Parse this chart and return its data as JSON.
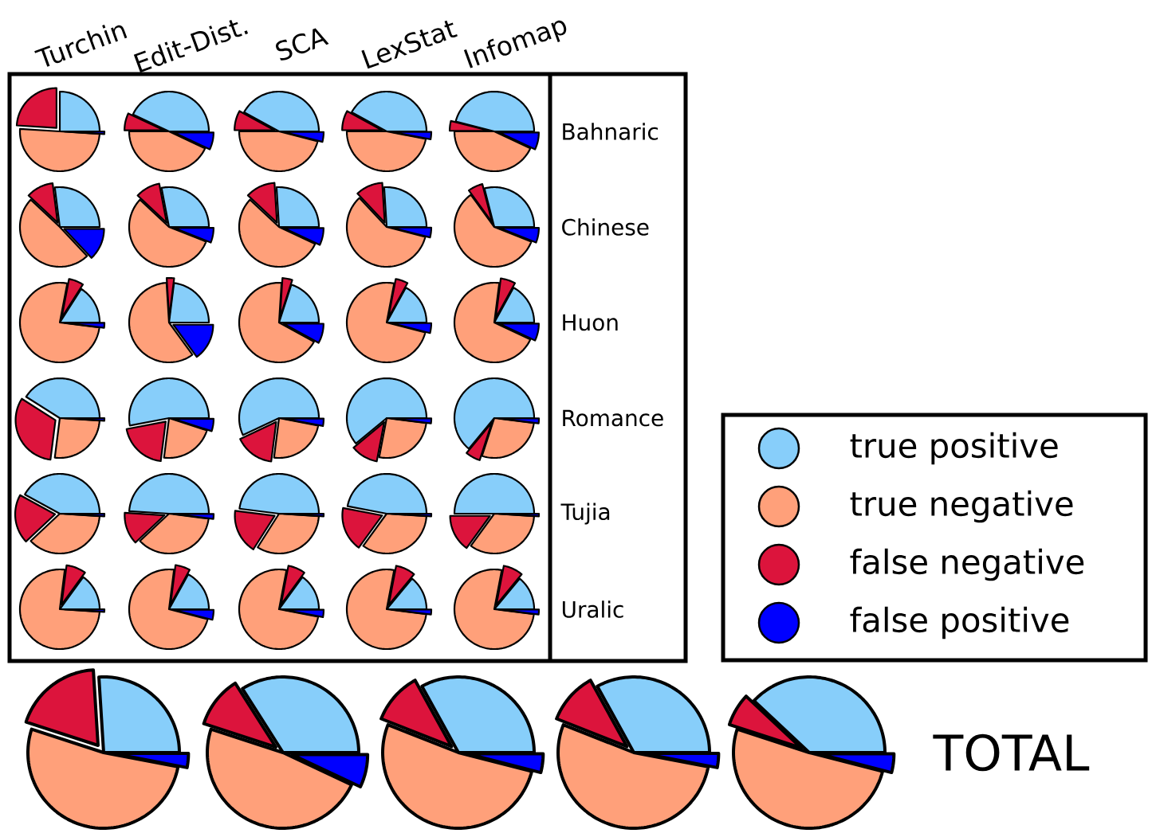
{
  "chart_data": [
    {
      "type": "pie",
      "title": "Turchin",
      "categories": [
        "true positive",
        "true negative",
        "false negative",
        "false positive"
      ],
      "legend": "right",
      "values": [
        25,
        50,
        24,
        1
      ],
      "colors": [
        "#87cefa",
        "#ffa07a",
        "#dc143c",
        "#0000ff"
      ]
    },
    {
      "type": "pie",
      "title": "Edit-Dist.",
      "categories": [
        null,
        null,
        null,
        null
      ],
      "values": [
        43,
        43,
        7,
        7
      ],
      "colors": [
        "#87cefa",
        "#ffa07a",
        "#dc143c",
        "#0000ff"
      ]
    },
    {
      "type": "pie",
      "title": "SCA",
      "categories": [
        null,
        null,
        null,
        null
      ],
      "values": [
        42,
        46,
        8,
        4
      ],
      "colors": [
        "#87cefa",
        "#ffa07a",
        "#dc143c",
        "#0000ff"
      ]
    },
    {
      "type": "pie",
      "title": "LexStat",
      "categories": [
        null,
        null,
        null,
        null
      ],
      "values": [
        42,
        47,
        8,
        3
      ],
      "colors": [
        "#87cefa",
        "#ffa07a",
        "#dc143c",
        "#0000ff"
      ]
    },
    {
      "type": "pie",
      "title": "Infomap",
      "categories": [
        null,
        null,
        null,
        null
      ],
      "values": [
        46,
        43,
        4,
        7
      ],
      "colors": [
        "#87cefa",
        "#ffa07a",
        "#dc143c",
        "#0000ff"
      ],
      "annotations": [
        "Bahnaric"
      ]
    },
    {
      "type": "pie",
      "categories": [
        null,
        null,
        null,
        null
      ],
      "values": [
        27,
        49,
        11,
        13
      ],
      "colors": [
        "#87cefa",
        "#ffa07a",
        "#dc143c",
        "#0000ff"
      ]
    },
    {
      "type": "pie",
      "categories": [
        null,
        null,
        null,
        null
      ],
      "values": [
        28,
        56,
        10,
        6
      ],
      "colors": [
        "#87cefa",
        "#ffa07a",
        "#dc143c",
        "#0000ff"
      ]
    },
    {
      "type": "pie",
      "categories": [
        null,
        null,
        null,
        null
      ],
      "values": [
        26,
        55,
        12,
        7
      ],
      "colors": [
        "#87cefa",
        "#ffa07a",
        "#dc143c",
        "#0000ff"
      ]
    },
    {
      "type": "pie",
      "categories": [
        null,
        null,
        null,
        null
      ],
      "values": [
        26,
        59,
        11,
        4
      ],
      "colors": [
        "#87cefa",
        "#ffa07a",
        "#dc143c",
        "#0000ff"
      ]
    },
    {
      "type": "pie",
      "categories": [
        null,
        null,
        null,
        null
      ],
      "values": [
        29,
        59,
        6,
        6
      ],
      "colors": [
        "#87cefa",
        "#ffa07a",
        "#dc143c",
        "#0000ff"
      ],
      "annotations": [
        "Chinese"
      ]
    },
    {
      "type": "pie",
      "categories": [
        null,
        null,
        null,
        null
      ],
      "values": [
        16,
        76,
        6,
        2
      ],
      "colors": [
        "#87cefa",
        "#ffa07a",
        "#dc143c",
        "#0000ff"
      ]
    },
    {
      "type": "pie",
      "categories": [
        null,
        null,
        null,
        null
      ],
      "values": [
        23,
        59,
        3,
        15
      ],
      "colors": [
        "#87cefa",
        "#ffa07a",
        "#dc143c",
        "#0000ff"
      ]
    },
    {
      "type": "pie",
      "categories": [
        null,
        null,
        null,
        null
      ],
      "values": [
        20,
        68,
        4,
        8
      ],
      "colors": [
        "#87cefa",
        "#ffa07a",
        "#dc143c",
        "#0000ff"
      ]
    },
    {
      "type": "pie",
      "categories": [
        null,
        null,
        null,
        null
      ],
      "values": [
        17,
        74,
        5,
        4
      ],
      "colors": [
        "#87cefa",
        "#ffa07a",
        "#dc143c",
        "#0000ff"
      ]
    },
    {
      "type": "pie",
      "categories": [
        null,
        null,
        null,
        null
      ],
      "values": [
        17,
        70,
        6,
        7
      ],
      "colors": [
        "#87cefa",
        "#ffa07a",
        "#dc143c",
        "#0000ff"
      ],
      "annotations": [
        "Huon"
      ]
    },
    {
      "type": "pie",
      "categories": [
        null,
        null,
        null,
        null
      ],
      "values": [
        41,
        26,
        32,
        1
      ],
      "colors": [
        "#87cefa",
        "#ffa07a",
        "#dc143c",
        "#0000ff"
      ]
    },
    {
      "type": "pie",
      "categories": [
        null,
        null,
        null,
        null
      ],
      "values": [
        53,
        22,
        20,
        5
      ],
      "colors": [
        "#87cefa",
        "#ffa07a",
        "#dc143c",
        "#0000ff"
      ]
    },
    {
      "type": "pie",
      "categories": [
        null,
        null,
        null,
        null
      ],
      "values": [
        57,
        24,
        16,
        3
      ],
      "colors": [
        "#87cefa",
        "#ffa07a",
        "#dc143c",
        "#0000ff"
      ]
    },
    {
      "type": "pie",
      "categories": [
        null,
        null,
        null,
        null
      ],
      "values": [
        61,
        26,
        11,
        2
      ],
      "colors": [
        "#87cefa",
        "#ffa07a",
        "#dc143c",
        "#0000ff"
      ]
    },
    {
      "type": "pie",
      "categories": [
        null,
        null,
        null,
        null
      ],
      "values": [
        64,
        28,
        6,
        2
      ],
      "colors": [
        "#87cefa",
        "#ffa07a",
        "#dc143c",
        "#0000ff"
      ],
      "annotations": [
        "Romance"
      ]
    },
    {
      "type": "pie",
      "categories": [
        null,
        null,
        null,
        null
      ],
      "values": [
        42,
        37,
        20,
        1
      ],
      "colors": [
        "#87cefa",
        "#ffa07a",
        "#dc143c",
        "#0000ff"
      ]
    },
    {
      "type": "pie",
      "categories": [
        null,
        null,
        null,
        null
      ],
      "values": [
        49,
        36,
        13,
        2
      ],
      "colors": [
        "#87cefa",
        "#ffa07a",
        "#dc143c",
        "#0000ff"
      ]
    },
    {
      "type": "pie",
      "categories": [
        null,
        null,
        null,
        null
      ],
      "values": [
        48,
        33,
        18,
        1
      ],
      "colors": [
        "#87cefa",
        "#ffa07a",
        "#dc143c",
        "#0000ff"
      ]
    },
    {
      "type": "pie",
      "categories": [
        null,
        null,
        null,
        null
      ],
      "values": [
        47,
        34,
        18,
        1
      ],
      "colors": [
        "#87cefa",
        "#ffa07a",
        "#dc143c",
        "#0000ff"
      ]
    },
    {
      "type": "pie",
      "categories": [
        null,
        null,
        null,
        null
      ],
      "values": [
        50,
        34,
        15,
        1
      ],
      "colors": [
        "#87cefa",
        "#ffa07a",
        "#dc143c",
        "#0000ff"
      ],
      "annotations": [
        "Tujia"
      ]
    },
    {
      "type": "pie",
      "categories": [
        null,
        null,
        null,
        null
      ],
      "values": [
        15,
        76,
        8,
        1
      ],
      "colors": [
        "#87cefa",
        "#ffa07a",
        "#dc143c",
        "#0000ff"
      ]
    },
    {
      "type": "pie",
      "categories": [
        null,
        null,
        null,
        null
      ],
      "values": [
        17,
        73,
        6,
        4
      ],
      "colors": [
        "#87cefa",
        "#ffa07a",
        "#dc143c",
        "#0000ff"
      ]
    },
    {
      "type": "pie",
      "categories": [
        null,
        null,
        null,
        null
      ],
      "values": [
        15,
        75,
        7,
        3
      ],
      "colors": [
        "#87cefa",
        "#ffa07a",
        "#dc143c",
        "#0000ff"
      ]
    },
    {
      "type": "pie",
      "categories": [
        null,
        null,
        null,
        null
      ],
      "values": [
        14,
        76,
        8,
        2
      ],
      "colors": [
        "#87cefa",
        "#ffa07a",
        "#dc143c",
        "#0000ff"
      ]
    },
    {
      "type": "pie",
      "categories": [
        null,
        null,
        null,
        null
      ],
      "values": [
        14,
        76,
        8,
        2
      ],
      "colors": [
        "#87cefa",
        "#ffa07a",
        "#dc143c",
        "#0000ff"
      ],
      "annotations": [
        "Uralic"
      ]
    },
    {
      "type": "pie",
      "categories": [
        null,
        null,
        null,
        null
      ],
      "values": [
        26,
        52,
        19,
        3
      ],
      "colors": [
        "#87cefa",
        "#ffa07a",
        "#dc143c",
        "#0000ff"
      ]
    },
    {
      "type": "pie",
      "categories": [
        null,
        null,
        null,
        null
      ],
      "values": [
        34,
        48,
        11,
        7
      ],
      "colors": [
        "#87cefa",
        "#ffa07a",
        "#dc143c",
        "#0000ff"
      ]
    },
    {
      "type": "pie",
      "categories": [
        null,
        null,
        null,
        null
      ],
      "values": [
        33,
        52,
        11,
        4
      ],
      "colors": [
        "#87cefa",
        "#ffa07a",
        "#dc143c",
        "#0000ff"
      ]
    },
    {
      "type": "pie",
      "categories": [
        null,
        null,
        null,
        null
      ],
      "values": [
        33,
        53,
        11,
        3
      ],
      "colors": [
        "#87cefa",
        "#ffa07a",
        "#dc143c",
        "#0000ff"
      ]
    },
    {
      "type": "pie",
      "categories": [
        null,
        null,
        null,
        null
      ],
      "values": [
        38,
        51,
        7,
        4
      ],
      "colors": [
        "#87cefa",
        "#ffa07a",
        "#dc143c",
        "#0000ff"
      ],
      "annotations": [
        "TOTAL"
      ]
    }
  ]
}
